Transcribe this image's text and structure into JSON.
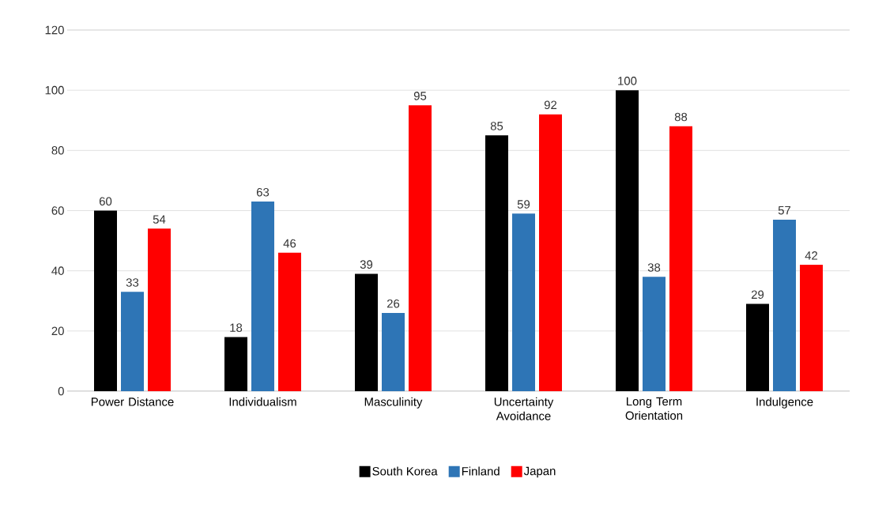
{
  "chart_data": {
    "type": "bar",
    "categories": [
      "Power Distance",
      "Individualism",
      "Masculinity",
      "Uncertainty Avoidance",
      "Long Term Orientation",
      "Indulgence"
    ],
    "series": [
      {
        "name": "South Korea",
        "color": "#000000",
        "values": [
          60,
          18,
          39,
          85,
          100,
          29
        ]
      },
      {
        "name": "Finland",
        "color": "#2e75b6",
        "values": [
          33,
          63,
          26,
          59,
          38,
          57
        ]
      },
      {
        "name": "Japan",
        "color": "#ff0000",
        "values": [
          54,
          46,
          95,
          92,
          88,
          42
        ]
      }
    ],
    "ylim": [
      0,
      120
    ],
    "yticks": [
      0,
      20,
      40,
      60,
      80,
      100,
      120
    ],
    "grid": "y",
    "legend": "bottom",
    "data_labels": true
  }
}
